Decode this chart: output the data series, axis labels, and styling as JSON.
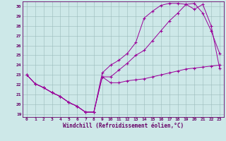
{
  "xlabel": "Windchill (Refroidissement éolien,°C)",
  "bg_color": "#cde8e8",
  "line_color": "#990099",
  "grid_color": "#99bbbb",
  "spine_color": "#660066",
  "tick_color": "#660066",
  "ylim": [
    18.7,
    30.5
  ],
  "xlim": [
    -0.5,
    23.5
  ],
  "yticks": [
    19,
    20,
    21,
    22,
    23,
    24,
    25,
    26,
    27,
    28,
    29,
    30
  ],
  "xticks": [
    0,
    1,
    2,
    3,
    4,
    5,
    6,
    7,
    8,
    9,
    10,
    11,
    12,
    13,
    14,
    15,
    16,
    17,
    18,
    19,
    20,
    21,
    22,
    23
  ],
  "line1_x": [
    0,
    1,
    2,
    3,
    4,
    5,
    6,
    7,
    8,
    9,
    10,
    11,
    12,
    13,
    14,
    15,
    16,
    17,
    18,
    19,
    20,
    21,
    22,
    23
  ],
  "line1_y": [
    23.0,
    22.1,
    21.7,
    21.2,
    20.8,
    20.2,
    19.8,
    19.2,
    19.2,
    22.8,
    22.2,
    22.2,
    22.4,
    22.5,
    22.6,
    22.8,
    23.0,
    23.2,
    23.4,
    23.6,
    23.7,
    23.8,
    23.9,
    24.0
  ],
  "line2_x": [
    0,
    1,
    2,
    3,
    4,
    5,
    6,
    7,
    8,
    9,
    10,
    11,
    12,
    13,
    14,
    15,
    16,
    17,
    18,
    19,
    20,
    21,
    22,
    23
  ],
  "line2_y": [
    23.0,
    22.1,
    21.7,
    21.2,
    20.8,
    20.2,
    19.8,
    19.2,
    19.2,
    22.8,
    22.8,
    23.5,
    24.2,
    25.0,
    25.5,
    26.5,
    27.5,
    28.5,
    29.3,
    30.2,
    30.3,
    29.3,
    27.5,
    25.2
  ],
  "line3_x": [
    0,
    1,
    2,
    3,
    4,
    5,
    6,
    7,
    8,
    9,
    10,
    11,
    12,
    13,
    14,
    15,
    16,
    17,
    18,
    19,
    20,
    21,
    22,
    23
  ],
  "line3_y": [
    23.0,
    22.1,
    21.7,
    21.2,
    20.8,
    20.2,
    19.8,
    19.2,
    19.2,
    23.2,
    24.0,
    24.5,
    25.2,
    26.3,
    28.8,
    29.5,
    30.1,
    30.3,
    30.3,
    30.2,
    29.7,
    30.2,
    28.0,
    23.7
  ]
}
